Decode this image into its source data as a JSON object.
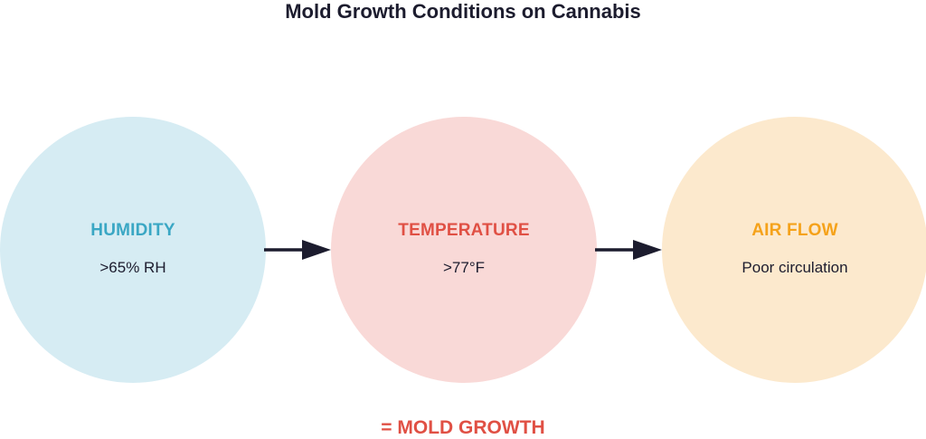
{
  "title": "Mold Growth Conditions on Cannabis",
  "nodes": [
    {
      "label": "HUMIDITY",
      "value": ">65% RH"
    },
    {
      "label": "TEMPERATURE",
      "value": ">77°F"
    },
    {
      "label": "AIR FLOW",
      "value": "Poor circulation"
    }
  ],
  "result": "= MOLD GROWTH",
  "colors": {
    "humidity_fill": "#d6ecf3",
    "humidity_text": "#3aa7c4",
    "temperature_fill": "#f9d9d7",
    "temperature_text": "#e05044",
    "airflow_fill": "#fce9cd",
    "airflow_text": "#f5a21a",
    "arrow": "#1c1c2e",
    "result_text": "#e05044"
  }
}
